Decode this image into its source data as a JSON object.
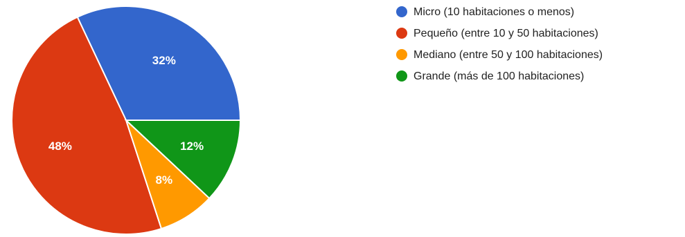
{
  "chart_data": {
    "type": "pie",
    "slices": [
      {
        "label": "Micro (10 habitaciones o menos)",
        "value": 32,
        "value_label": "32%",
        "color": "#3366cc"
      },
      {
        "label": "Pequeño (entre 10 y 50 habitaciones)",
        "value": 48,
        "value_label": "48%",
        "color": "#dc3912"
      },
      {
        "label": "Mediano (entre 50 y 100 habitaciones)",
        "value": 8,
        "value_label": "8%",
        "color": "#ff9900"
      },
      {
        "label": "Grande (más de 100 habitaciones)",
        "value": 12,
        "value_label": "12%",
        "color": "#109618"
      }
    ],
    "legend_position": "right"
  }
}
